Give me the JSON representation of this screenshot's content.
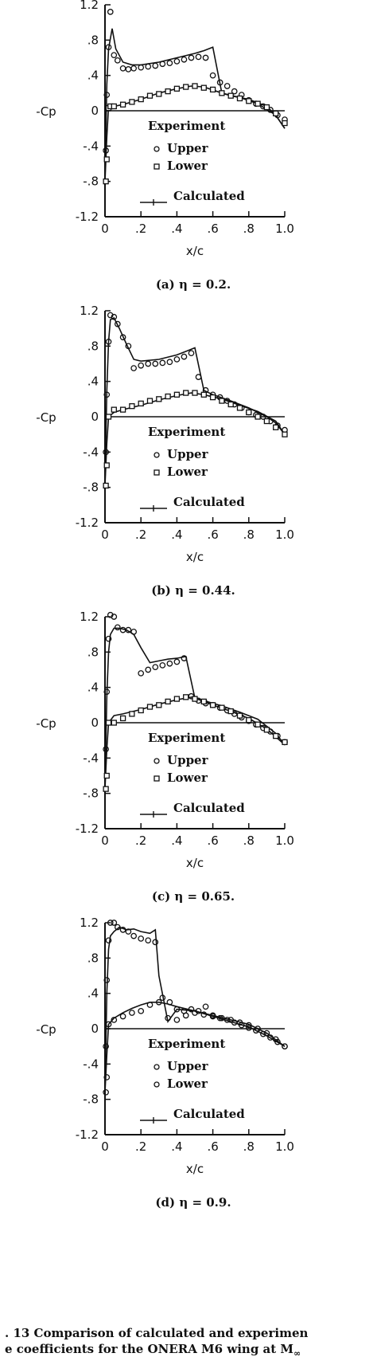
{
  "chart_data": [
    {
      "type": "line",
      "caption": "(a) η = 0.2.",
      "ylabel": "-Cp",
      "xlabel": "x/c",
      "xlim": [
        0,
        1.0
      ],
      "ylim": [
        -1.2,
        1.2
      ],
      "xticks": [
        "0",
        ".2",
        ".4",
        ".6",
        ".8",
        "1.0"
      ],
      "yticks": [
        "1.2",
        ".8",
        ".4",
        "0",
        "-.4",
        "-.8",
        "-1.2"
      ],
      "legend": {
        "title": "Experiment",
        "upper": "Upper",
        "lower": "Lower",
        "calculated": "Calculated"
      },
      "series": [
        {
          "name": "Calculated",
          "kind": "line",
          "x": [
            0,
            0.01,
            0.02,
            0.04,
            0.06,
            0.1,
            0.15,
            0.2,
            0.3,
            0.4,
            0.5,
            0.55,
            0.6,
            0.65,
            0.7,
            0.8,
            0.9,
            0.95,
            1.0
          ],
          "y": [
            -0.8,
            0.3,
            0.7,
            0.93,
            0.7,
            0.55,
            0.52,
            0.52,
            0.55,
            0.6,
            0.65,
            0.68,
            0.72,
            0.2,
            0.17,
            0.13,
            0.05,
            -0.05,
            -0.2
          ]
        },
        {
          "name": "Calculated",
          "kind": "line",
          "x": [
            0,
            0.01,
            0.02,
            0.05,
            0.1,
            0.2,
            0.3,
            0.4,
            0.48,
            0.55,
            0.65,
            0.75,
            0.85,
            0.95,
            1.0
          ],
          "y": [
            -0.8,
            -0.3,
            0.05,
            0.05,
            0.07,
            0.13,
            0.2,
            0.25,
            0.28,
            0.27,
            0.2,
            0.15,
            0.08,
            -0.05,
            -0.2
          ]
        },
        {
          "name": "Upper",
          "kind": "circle",
          "x": [
            0.005,
            0.01,
            0.02,
            0.03,
            0.05,
            0.07,
            0.1,
            0.13,
            0.16,
            0.2,
            0.24,
            0.28,
            0.32,
            0.36,
            0.4,
            0.44,
            0.48,
            0.52,
            0.56,
            0.6,
            0.64,
            0.68,
            0.72,
            0.76,
            0.8,
            0.84,
            0.88,
            0.92,
            0.96,
            1.0
          ],
          "y": [
            -0.45,
            0.18,
            0.72,
            1.12,
            0.63,
            0.57,
            0.48,
            0.47,
            0.48,
            0.49,
            0.5,
            0.51,
            0.53,
            0.54,
            0.56,
            0.58,
            0.6,
            0.61,
            0.6,
            0.4,
            0.32,
            0.28,
            0.22,
            0.18,
            0.12,
            0.08,
            0.05,
            0.01,
            -0.05,
            -0.1
          ]
        },
        {
          "name": "Lower",
          "kind": "square",
          "x": [
            0.005,
            0.01,
            0.02,
            0.03,
            0.05,
            0.1,
            0.15,
            0.2,
            0.25,
            0.3,
            0.35,
            0.4,
            0.45,
            0.5,
            0.55,
            0.6,
            0.65,
            0.7,
            0.75,
            0.8,
            0.85,
            0.9,
            0.95,
            1.0
          ],
          "y": [
            -0.8,
            -0.55,
            0.03,
            0.05,
            0.05,
            0.07,
            0.1,
            0.13,
            0.17,
            0.19,
            0.22,
            0.25,
            0.27,
            0.28,
            0.26,
            0.24,
            0.2,
            0.17,
            0.14,
            0.11,
            0.08,
            0.04,
            -0.03,
            -0.14
          ]
        }
      ]
    },
    {
      "type": "line",
      "caption": "(b) η = 0.44.",
      "ylabel": "-Cp",
      "xlabel": "x/c",
      "xlim": [
        0,
        1.0
      ],
      "ylim": [
        -1.2,
        1.2
      ],
      "xticks": [
        "0",
        ".2",
        ".4",
        ".6",
        ".8",
        "1.0"
      ],
      "yticks": [
        "1.2",
        ".8",
        ".4",
        "0",
        "-.4",
        "-.8",
        "-1.2"
      ],
      "legend": {
        "title": "Experiment",
        "upper": "Upper",
        "lower": "Lower",
        "calculated": "Calculated"
      },
      "series": [
        {
          "name": "Calculated",
          "kind": "line",
          "x": [
            0,
            0.01,
            0.02,
            0.03,
            0.05,
            0.08,
            0.12,
            0.16,
            0.2,
            0.3,
            0.4,
            0.45,
            0.5,
            0.55,
            0.6,
            0.7,
            0.8,
            0.9,
            0.95,
            1.0
          ],
          "y": [
            -0.78,
            0.3,
            0.85,
            1.1,
            1.12,
            1.0,
            0.82,
            0.65,
            0.63,
            0.65,
            0.7,
            0.74,
            0.78,
            0.3,
            0.25,
            0.18,
            0.1,
            0.0,
            -0.07,
            -0.2
          ]
        },
        {
          "name": "Calculated",
          "kind": "line",
          "x": [
            0,
            0.01,
            0.02,
            0.05,
            0.1,
            0.2,
            0.3,
            0.4,
            0.48,
            0.55,
            0.65,
            0.75,
            0.85,
            0.95,
            1.0
          ],
          "y": [
            -0.78,
            -0.3,
            0.0,
            0.05,
            0.08,
            0.13,
            0.19,
            0.24,
            0.27,
            0.25,
            0.2,
            0.13,
            0.06,
            -0.05,
            -0.2
          ]
        },
        {
          "name": "Upper",
          "kind": "circle",
          "x": [
            0.005,
            0.01,
            0.02,
            0.03,
            0.05,
            0.07,
            0.1,
            0.13,
            0.16,
            0.2,
            0.24,
            0.28,
            0.32,
            0.36,
            0.4,
            0.44,
            0.48,
            0.52,
            0.56,
            0.6,
            0.64,
            0.68,
            0.72,
            0.76,
            0.8,
            0.84,
            0.88,
            0.92,
            0.96,
            1.0
          ],
          "y": [
            -0.4,
            0.25,
            0.85,
            1.15,
            1.13,
            1.05,
            0.9,
            0.8,
            0.55,
            0.58,
            0.6,
            0.6,
            0.61,
            0.62,
            0.65,
            0.68,
            0.72,
            0.45,
            0.3,
            0.25,
            0.22,
            0.18,
            0.14,
            0.1,
            0.05,
            0.02,
            0.0,
            -0.05,
            -0.1,
            -0.15
          ]
        },
        {
          "name": "Lower",
          "kind": "square",
          "x": [
            0.005,
            0.01,
            0.02,
            0.05,
            0.1,
            0.15,
            0.2,
            0.25,
            0.3,
            0.35,
            0.4,
            0.45,
            0.5,
            0.55,
            0.6,
            0.65,
            0.7,
            0.75,
            0.8,
            0.85,
            0.9,
            0.95,
            1.0
          ],
          "y": [
            -0.78,
            -0.55,
            0.0,
            0.08,
            0.08,
            0.12,
            0.15,
            0.18,
            0.2,
            0.23,
            0.25,
            0.27,
            0.27,
            0.25,
            0.22,
            0.18,
            0.14,
            0.1,
            0.05,
            0.0,
            -0.05,
            -0.12,
            -0.2
          ]
        }
      ]
    },
    {
      "type": "line",
      "caption": "(c) η = 0.65.",
      "ylabel": "-Cp",
      "xlabel": "x/c",
      "xlim": [
        0,
        1.0
      ],
      "ylim": [
        -1.2,
        1.2
      ],
      "xticks": [
        "0",
        ".2",
        ".4",
        ".6",
        ".8",
        "1.0"
      ],
      "yticks": [
        "1.2",
        ".8",
        ".4",
        "0",
        "-.4",
        "-.8",
        "-1.2"
      ],
      "legend": {
        "title": "Experiment",
        "upper": "Upper",
        "lower": "Lower",
        "calculated": "Calculated"
      },
      "series": [
        {
          "name": "Calculated",
          "kind": "line",
          "x": [
            0,
            0.01,
            0.02,
            0.03,
            0.05,
            0.08,
            0.12,
            0.16,
            0.2,
            0.25,
            0.3,
            0.35,
            0.4,
            0.45,
            0.5,
            0.6,
            0.7,
            0.8,
            0.9,
            1.0
          ],
          "y": [
            -0.75,
            0.3,
            0.8,
            1.0,
            1.07,
            1.07,
            1.05,
            1.0,
            0.85,
            0.68,
            0.7,
            0.72,
            0.73,
            0.75,
            0.28,
            0.2,
            0.13,
            0.05,
            -0.07,
            -0.25
          ]
        },
        {
          "name": "Calculated",
          "kind": "line",
          "x": [
            0,
            0.01,
            0.02,
            0.05,
            0.1,
            0.2,
            0.3,
            0.4,
            0.48,
            0.55,
            0.65,
            0.75,
            0.85,
            0.95,
            1.0
          ],
          "y": [
            -0.75,
            -0.3,
            0.0,
            0.08,
            0.1,
            0.15,
            0.21,
            0.26,
            0.29,
            0.25,
            0.19,
            0.12,
            0.04,
            -0.12,
            -0.25
          ]
        },
        {
          "name": "Upper",
          "kind": "circle",
          "x": [
            0.005,
            0.01,
            0.02,
            0.03,
            0.05,
            0.07,
            0.1,
            0.13,
            0.16,
            0.2,
            0.24,
            0.28,
            0.32,
            0.36,
            0.4,
            0.44,
            0.48,
            0.52,
            0.56,
            0.6,
            0.64,
            0.68,
            0.72,
            0.76,
            0.8,
            0.84,
            0.88,
            0.92,
            0.96,
            1.0
          ],
          "y": [
            -0.3,
            0.35,
            0.95,
            1.22,
            1.2,
            1.08,
            1.05,
            1.05,
            1.03,
            0.56,
            0.6,
            0.63,
            0.65,
            0.67,
            0.69,
            0.73,
            0.3,
            0.25,
            0.22,
            0.2,
            0.17,
            0.14,
            0.1,
            0.06,
            0.02,
            -0.02,
            -0.06,
            -0.1,
            -0.15,
            -0.22
          ]
        },
        {
          "name": "Lower",
          "kind": "square",
          "x": [
            0.005,
            0.01,
            0.02,
            0.05,
            0.1,
            0.15,
            0.2,
            0.25,
            0.3,
            0.35,
            0.4,
            0.45,
            0.5,
            0.55,
            0.6,
            0.65,
            0.7,
            0.75,
            0.8,
            0.85,
            0.9,
            0.95,
            1.0
          ],
          "y": [
            -0.75,
            -0.6,
            0.0,
            0.0,
            0.05,
            0.1,
            0.14,
            0.18,
            0.2,
            0.24,
            0.27,
            0.29,
            0.27,
            0.24,
            0.2,
            0.17,
            0.13,
            0.08,
            0.03,
            -0.02,
            -0.08,
            -0.15,
            -0.22
          ]
        }
      ]
    },
    {
      "type": "line",
      "caption": "(d) η = 0.9.",
      "ylabel": "-Cp",
      "xlabel": "x/c",
      "xlim": [
        0,
        1.0
      ],
      "ylim": [
        -1.2,
        1.2
      ],
      "xticks": [
        "0",
        ".2",
        ".4",
        ".6",
        ".8",
        "1.0"
      ],
      "yticks": [
        "1.2",
        ".8",
        ".4",
        "0",
        "-.4",
        "-.8",
        "-1.2"
      ],
      "legend": {
        "title": "Experiment",
        "upper": "Upper",
        "lower": "Lower",
        "calculated": "Calculated"
      },
      "series": [
        {
          "name": "Calculated",
          "kind": "line",
          "x": [
            0,
            0.01,
            0.02,
            0.03,
            0.05,
            0.08,
            0.12,
            0.16,
            0.2,
            0.25,
            0.28,
            0.3,
            0.35,
            0.4,
            0.5,
            0.6,
            0.7,
            0.8,
            0.9,
            1.0
          ],
          "y": [
            -0.72,
            0.4,
            0.9,
            1.05,
            1.1,
            1.15,
            1.12,
            1.13,
            1.1,
            1.08,
            1.12,
            0.6,
            0.08,
            0.22,
            0.2,
            0.15,
            0.1,
            0.05,
            -0.05,
            -0.2
          ]
        },
        {
          "name": "Calculated",
          "kind": "line",
          "x": [
            0,
            0.01,
            0.02,
            0.05,
            0.1,
            0.15,
            0.2,
            0.25,
            0.3,
            0.35,
            0.4,
            0.5,
            0.6,
            0.7,
            0.8,
            0.9,
            1.0
          ],
          "y": [
            -0.72,
            -0.3,
            0.05,
            0.12,
            0.18,
            0.23,
            0.27,
            0.3,
            0.3,
            0.28,
            0.25,
            0.2,
            0.14,
            0.08,
            0.02,
            -0.08,
            -0.2
          ]
        },
        {
          "name": "Upper",
          "kind": "circle",
          "x": [
            0.005,
            0.01,
            0.02,
            0.03,
            0.05,
            0.07,
            0.1,
            0.13,
            0.16,
            0.2,
            0.24,
            0.28,
            0.32,
            0.36,
            0.4,
            0.44,
            0.48,
            0.52,
            0.56,
            0.6,
            0.64,
            0.68,
            0.72,
            0.76,
            0.8,
            0.84,
            0.88,
            0.92,
            0.96,
            1.0
          ],
          "y": [
            -0.2,
            0.55,
            1.0,
            1.2,
            1.2,
            1.15,
            1.12,
            1.1,
            1.05,
            1.02,
            1.0,
            0.98,
            0.35,
            0.3,
            0.22,
            0.2,
            0.22,
            0.2,
            0.25,
            0.15,
            0.12,
            0.1,
            0.07,
            0.04,
            0.01,
            -0.02,
            -0.06,
            -0.1,
            -0.15,
            -0.2
          ]
        },
        {
          "name": "Lower",
          "kind": "circle",
          "x": [
            0.005,
            0.01,
            0.02,
            0.05,
            0.1,
            0.15,
            0.2,
            0.25,
            0.3,
            0.35,
            0.4,
            0.45,
            0.5,
            0.55,
            0.6,
            0.65,
            0.7,
            0.75,
            0.8,
            0.85,
            0.9,
            0.95,
            1.0
          ],
          "y": [
            -0.72,
            -0.55,
            0.05,
            0.1,
            0.14,
            0.18,
            0.2,
            0.27,
            0.3,
            0.12,
            0.1,
            0.15,
            0.18,
            0.16,
            0.14,
            0.12,
            0.1,
            0.07,
            0.04,
            0.0,
            -0.05,
            -0.12,
            -0.2
          ]
        }
      ]
    }
  ],
  "figure_caption": {
    "line1": ". 13 Comparison of calculated and experimen",
    "line2": "e coefficients for the ONERA M6 wing at M",
    "subscript": "∞"
  }
}
